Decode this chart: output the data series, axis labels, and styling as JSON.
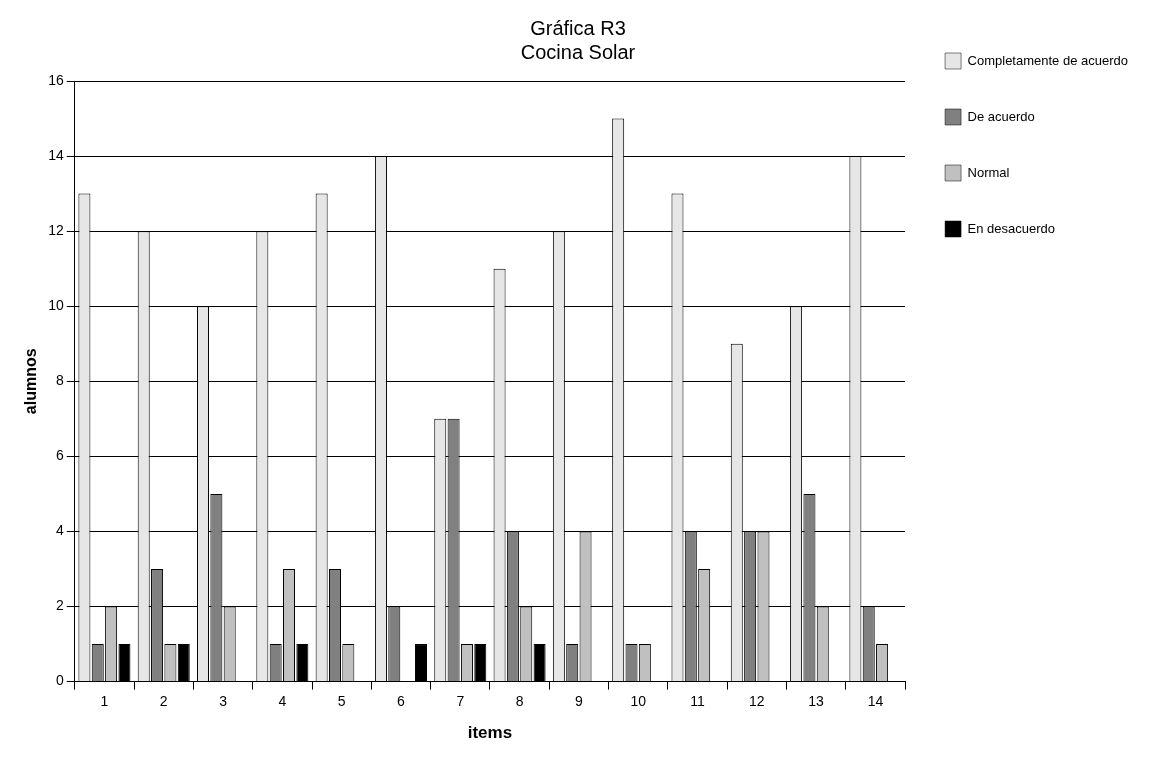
{
  "chart_data": {
    "type": "bar",
    "title": "Gráfica R3",
    "subtitle": "Cocina Solar",
    "xlabel": "items",
    "ylabel": "alumnos",
    "categories": [
      "1",
      "2",
      "3",
      "4",
      "5",
      "6",
      "7",
      "8",
      "9",
      "10",
      "11",
      "12",
      "13",
      "14"
    ],
    "series": [
      {
        "name": "Completamente de acuerdo",
        "color": "#e6e6e6",
        "values": [
          13,
          12,
          10,
          12,
          13,
          14,
          7,
          11,
          12,
          15,
          13,
          9,
          10,
          14
        ]
      },
      {
        "name": "De acuerdo",
        "color": "#808080",
        "values": [
          1,
          3,
          5,
          1,
          3,
          2,
          7,
          4,
          1,
          1,
          4,
          4,
          5,
          2
        ]
      },
      {
        "name": "Normal",
        "color": "#c0c0c0",
        "values": [
          2,
          1,
          2,
          3,
          1,
          0,
          1,
          2,
          4,
          1,
          3,
          4,
          2,
          1
        ]
      },
      {
        "name": "En desacuerdo",
        "color": "#000000",
        "values": [
          1,
          1,
          0,
          1,
          0,
          1,
          1,
          1,
          0,
          0,
          0,
          0,
          0,
          0
        ]
      }
    ],
    "ylim": [
      0,
      16
    ],
    "yticks": [
      0,
      2,
      4,
      6,
      8,
      10,
      12,
      14,
      16
    ],
    "grid": "y",
    "legend": "right"
  }
}
